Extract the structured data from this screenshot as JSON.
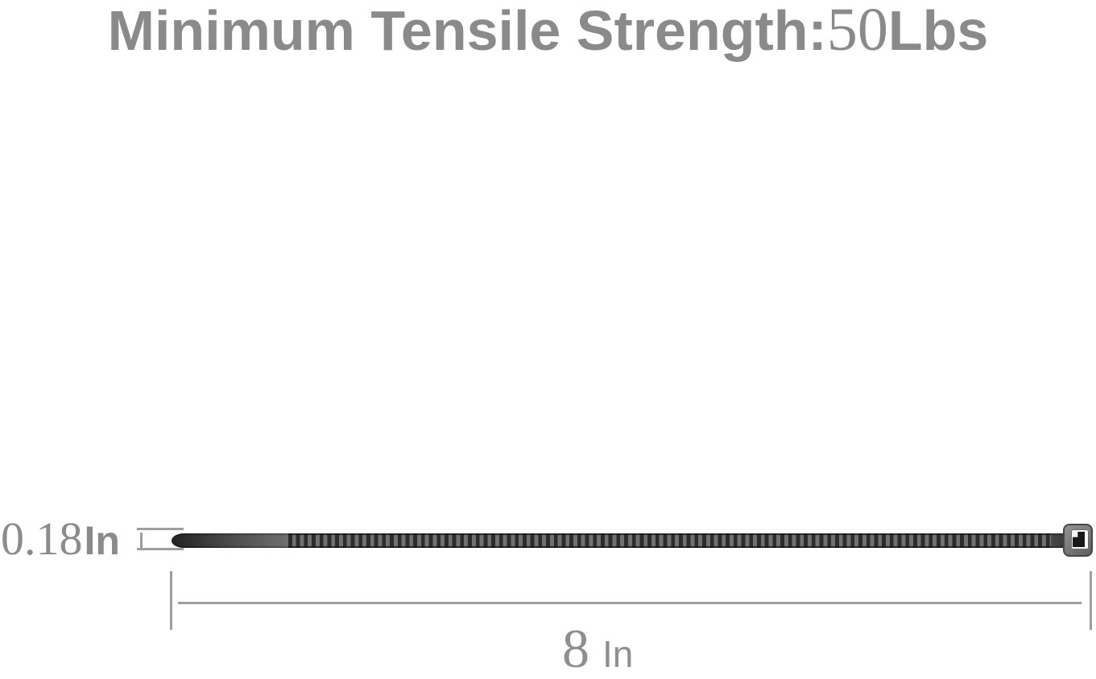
{
  "title": {
    "full_text": "Minimum Tensile Strength:50Lbs",
    "prefix": "Minimum Tensile Strength:",
    "value": "50",
    "unit": "Lbs"
  },
  "annotations": {
    "width": {
      "full_text": "0.18In",
      "value": "0.18",
      "unit": "In"
    },
    "length": {
      "full_text": "8 In",
      "value": "8",
      "unit": "In"
    }
  },
  "graphic": {
    "description": "black nylon cable zip tie shown horizontally: pointed tail on the left, ribbed strap, locking head on the right"
  },
  "colors": {
    "background": "#ffffff",
    "text_gray": "#8a8a8a",
    "dimension_line_gray": "#9e9e9e",
    "tie_dark": "#2c2c2c",
    "tie_light_ridge": "#707070",
    "tie_head_gray": "#787878"
  }
}
